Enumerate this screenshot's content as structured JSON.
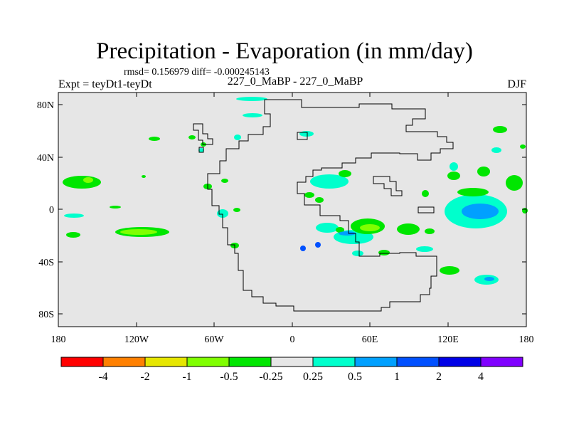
{
  "title": "Precipitation - Evaporation (in mm/day)",
  "stats": "rmsd= 0.156979 diff= -0.000245143",
  "left_label": "Expt = teyDt1-teyDt",
  "center_label": "227_0_MaBP - 227_0_MaBP",
  "right_label": "DJF",
  "axes": {
    "x_ticks": [
      "180",
      "120W",
      "60W",
      "0",
      "60E",
      "120E",
      "180"
    ],
    "y_ticks": [
      "80N",
      "40N",
      "0",
      "40S",
      "80S"
    ]
  },
  "colorbar": {
    "colors": [
      "#ff0000",
      "#ff8000",
      "#e6e600",
      "#80ff00",
      "#00e600",
      "#e6e6e6",
      "#00ffcc",
      "#00a0ff",
      "#0050ff",
      "#0000e6",
      "#8000ff"
    ],
    "labels": [
      "-4",
      "-2",
      "-1",
      "-0.5",
      "-0.25",
      "0.25",
      "0.5",
      "1",
      "2",
      "4"
    ]
  },
  "colors": {
    "background": "#e6e6e6",
    "green": "#00e600",
    "light_green": "#80ff00",
    "cyan": "#00ffcc",
    "light_blue": "#00a0ff",
    "blue": "#0050ff"
  }
}
